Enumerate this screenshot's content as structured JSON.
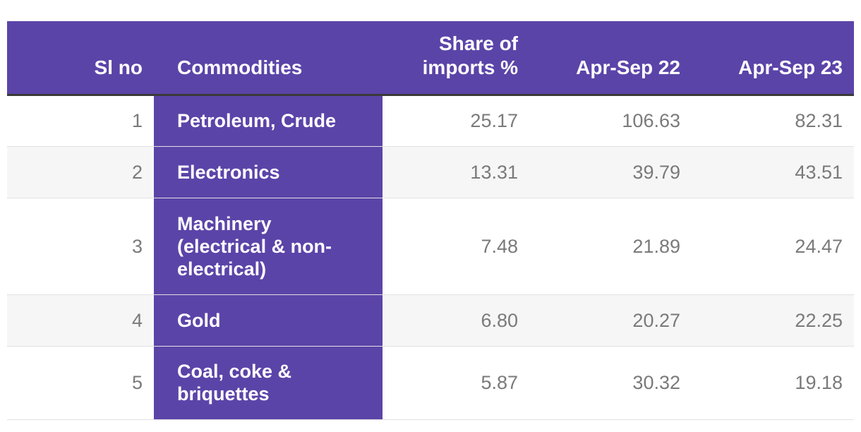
{
  "table": {
    "headers": {
      "sl_no": "Sl no",
      "commodities": "Commodities",
      "share": "Share of imports %",
      "apr_sep_22": "Apr-Sep 22",
      "apr_sep_23": "Apr-Sep 23"
    },
    "rows": [
      {
        "sl": "1",
        "commodity": "Petroleum, Crude",
        "share": "25.17",
        "apr_sep_22": "106.63",
        "apr_sep_23": "82.31"
      },
      {
        "sl": "2",
        "commodity": "Electronics",
        "share": "13.31",
        "apr_sep_22": "39.79",
        "apr_sep_23": "43.51"
      },
      {
        "sl": "3",
        "commodity": "Machinery (electrical & non-electrical)",
        "share": "7.48",
        "apr_sep_22": "21.89",
        "apr_sep_23": "24.47"
      },
      {
        "sl": "4",
        "commodity": "Gold",
        "share": "6.80",
        "apr_sep_22": "20.27",
        "apr_sep_23": "22.25"
      },
      {
        "sl": "5",
        "commodity": "Coal, coke & briquettes",
        "share": "5.87",
        "apr_sep_22": "30.32",
        "apr_sep_23": "19.18"
      }
    ]
  },
  "colors": {
    "header_bg": "#5b44a8",
    "commodity_bg": "#5b44a8",
    "header_text": "#ffffff",
    "cell_text": "#7a7a7a",
    "alt_row_bg": "#f6f6f6"
  }
}
